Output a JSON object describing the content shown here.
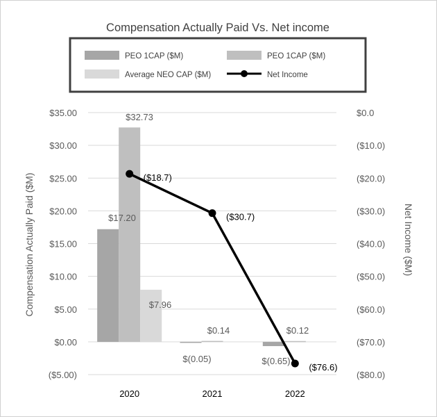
{
  "chart_data": {
    "type": "bar",
    "title": "Compensation Actually Paid Vs. Net income",
    "categories": [
      "2020",
      "2021",
      "2022"
    ],
    "ylabel": "Compensation Actually Paid ($M)",
    "y2label": "Net  Income ($M)",
    "ylim": [
      -5,
      35
    ],
    "y2lim": [
      -80,
      0
    ],
    "yticks": [
      "$35.00",
      "$30.00",
      "$25.00",
      "$20.00",
      "$15.00",
      "$10.00",
      "$5.00",
      "$0.00",
      "($5.00)"
    ],
    "y2ticks": [
      "$0.0",
      "($10.0)",
      "($20.0)",
      "($30.0)",
      "($40.0)",
      "($50.0)",
      "($60.0)",
      "($70.0)",
      "($80.0)"
    ],
    "grid": true,
    "legend_position": "top",
    "series": [
      {
        "name": "PEO 1CAP ($M)",
        "kind": "bar",
        "axis": "left",
        "color": "#a6a6a6",
        "values": [
          17.2,
          -0.05,
          -0.65
        ],
        "labels": [
          "$17.20",
          "$(0.05)",
          "$(0.65)"
        ]
      },
      {
        "name": "PEO 1CAP ($M)",
        "kind": "bar",
        "axis": "left",
        "color": "#bfbfbf",
        "values": [
          32.73,
          0.14,
          0.12
        ],
        "labels": [
          "$32.73",
          "$0.14",
          "$0.12"
        ]
      },
      {
        "name": "Average NEO CAP ($M)",
        "kind": "bar",
        "axis": "left",
        "color": "#d9d9d9",
        "values": [
          7.96,
          null,
          null
        ],
        "labels": [
          "$7.96",
          "",
          ""
        ]
      },
      {
        "name": "Net Income",
        "kind": "line",
        "axis": "right",
        "color": "#000000",
        "values": [
          -18.7,
          -30.7,
          -76.6
        ],
        "labels": [
          "($18.7)",
          "($30.7)",
          "($76.6)"
        ]
      }
    ]
  }
}
